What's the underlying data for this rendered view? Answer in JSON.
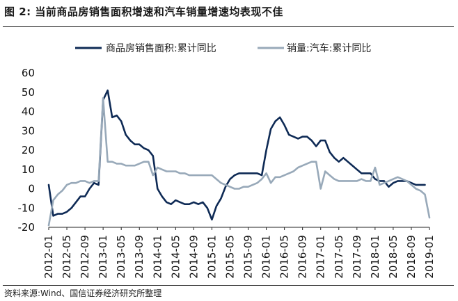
{
  "figure": {
    "title": "图 2:  当前商品房销售面积增速和汽车销量增速均表现不佳",
    "source": "资料来源:Wind、国信证券经济研究所整理"
  },
  "chart_data": {
    "type": "line",
    "title": "",
    "xlabel": "",
    "ylabel": "",
    "ylim": [
      -20,
      60
    ],
    "yticks": [
      -20,
      -10,
      0,
      10,
      20,
      30,
      40,
      50,
      60
    ],
    "xticks": [
      "2012-01",
      "2012-05",
      "2012-09",
      "2013-01",
      "2013-05",
      "2013-09",
      "2014-01",
      "2014-05",
      "2014-09",
      "2015-01",
      "2015-05",
      "2015-09",
      "2016-01",
      "2016-05",
      "2016-09",
      "2017-01",
      "2017-05",
      "2017-09",
      "2018-01",
      "2018-05",
      "2018-09",
      "2019-01"
    ],
    "grid": false,
    "legend_position": "top",
    "series": [
      {
        "name": "商品房销售面积:累计同比",
        "color": "#0e2a55",
        "points": [
          [
            "2012-01",
            2
          ],
          [
            "2012-02",
            -14
          ],
          [
            "2012-03",
            -13
          ],
          [
            "2012-04",
            -13
          ],
          [
            "2012-05",
            -12
          ],
          [
            "2012-06",
            -10
          ],
          [
            "2012-07",
            -7
          ],
          [
            "2012-08",
            -4
          ],
          [
            "2012-09",
            -4
          ],
          [
            "2012-10",
            0
          ],
          [
            "2012-11",
            3
          ],
          [
            "2012-12",
            2
          ],
          [
            "2013-01",
            46
          ],
          [
            "2013-02",
            51
          ],
          [
            "2013-03",
            37
          ],
          [
            "2013-04",
            38
          ],
          [
            "2013-05",
            35
          ],
          [
            "2013-06",
            28
          ],
          [
            "2013-07",
            25
          ],
          [
            "2013-08",
            23
          ],
          [
            "2013-09",
            23
          ],
          [
            "2013-10",
            21
          ],
          [
            "2013-11",
            20
          ],
          [
            "2013-12",
            17
          ],
          [
            "2014-01",
            0
          ],
          [
            "2014-02",
            -4
          ],
          [
            "2014-03",
            -7
          ],
          [
            "2014-04",
            -8
          ],
          [
            "2014-05",
            -6
          ],
          [
            "2014-06",
            -7
          ],
          [
            "2014-07",
            -8
          ],
          [
            "2014-08",
            -8
          ],
          [
            "2014-09",
            -7
          ],
          [
            "2014-10",
            -8
          ],
          [
            "2014-11",
            -7
          ],
          [
            "2014-12",
            -10
          ],
          [
            "2015-01",
            -16
          ],
          [
            "2015-02",
            -9
          ],
          [
            "2015-03",
            -5
          ],
          [
            "2015-04",
            1
          ],
          [
            "2015-05",
            5
          ],
          [
            "2015-06",
            7
          ],
          [
            "2015-07",
            8
          ],
          [
            "2015-08",
            8
          ],
          [
            "2015-09",
            8
          ],
          [
            "2015-10",
            8
          ],
          [
            "2015-11",
            8
          ],
          [
            "2015-12",
            7
          ],
          [
            "2016-01",
            20
          ],
          [
            "2016-02",
            31
          ],
          [
            "2016-03",
            35
          ],
          [
            "2016-04",
            37
          ],
          [
            "2016-05",
            33
          ],
          [
            "2016-06",
            28
          ],
          [
            "2016-07",
            27
          ],
          [
            "2016-08",
            26
          ],
          [
            "2016-09",
            27
          ],
          [
            "2016-10",
            27
          ],
          [
            "2016-11",
            25
          ],
          [
            "2016-12",
            22
          ],
          [
            "2017-01",
            25
          ],
          [
            "2017-02",
            25
          ],
          [
            "2017-03",
            19
          ],
          [
            "2017-04",
            16
          ],
          [
            "2017-05",
            14
          ],
          [
            "2017-06",
            16
          ],
          [
            "2017-07",
            14
          ],
          [
            "2017-08",
            12
          ],
          [
            "2017-09",
            10
          ],
          [
            "2017-10",
            8
          ],
          [
            "2017-11",
            8
          ],
          [
            "2017-12",
            8
          ],
          [
            "2018-01",
            5
          ],
          [
            "2018-02",
            4
          ],
          [
            "2018-03",
            4
          ],
          [
            "2018-04",
            1
          ],
          [
            "2018-05",
            3
          ],
          [
            "2018-06",
            4
          ],
          [
            "2018-07",
            4
          ],
          [
            "2018-08",
            4
          ],
          [
            "2018-09",
            3
          ],
          [
            "2018-10",
            2
          ],
          [
            "2018-11",
            2
          ],
          [
            "2018-12",
            2
          ]
        ]
      },
      {
        "name": "销量:汽车:累计同比",
        "color": "#98a9b9",
        "points": [
          [
            "2012-01",
            -19
          ],
          [
            "2012-02",
            -6
          ],
          [
            "2012-03",
            -3
          ],
          [
            "2012-04",
            -1
          ],
          [
            "2012-05",
            2
          ],
          [
            "2012-06",
            3
          ],
          [
            "2012-07",
            3
          ],
          [
            "2012-08",
            4
          ],
          [
            "2012-09",
            4
          ],
          [
            "2012-10",
            3
          ],
          [
            "2012-11",
            4
          ],
          [
            "2012-12",
            4
          ],
          [
            "2013-01",
            47
          ],
          [
            "2013-02",
            14
          ],
          [
            "2013-03",
            14
          ],
          [
            "2013-04",
            13
          ],
          [
            "2013-05",
            13
          ],
          [
            "2013-06",
            12
          ],
          [
            "2013-07",
            12
          ],
          [
            "2013-08",
            12
          ],
          [
            "2013-09",
            13
          ],
          [
            "2013-10",
            14
          ],
          [
            "2013-11",
            14
          ],
          [
            "2013-12",
            7
          ],
          [
            "2014-01",
            11
          ],
          [
            "2014-02",
            10
          ],
          [
            "2014-03",
            9
          ],
          [
            "2014-04",
            9
          ],
          [
            "2014-05",
            9
          ],
          [
            "2014-06",
            8
          ],
          [
            "2014-07",
            8
          ],
          [
            "2014-08",
            7
          ],
          [
            "2014-09",
            7
          ],
          [
            "2014-10",
            7
          ],
          [
            "2014-11",
            7
          ],
          [
            "2014-12",
            7
          ],
          [
            "2015-01",
            7
          ],
          [
            "2015-02",
            5
          ],
          [
            "2015-03",
            3
          ],
          [
            "2015-04",
            2
          ],
          [
            "2015-05",
            1
          ],
          [
            "2015-06",
            0
          ],
          [
            "2015-07",
            0
          ],
          [
            "2015-08",
            1
          ],
          [
            "2015-09",
            1
          ],
          [
            "2015-10",
            2
          ],
          [
            "2015-11",
            3
          ],
          [
            "2015-12",
            5
          ],
          [
            "2016-01",
            8
          ],
          [
            "2016-02",
            3
          ],
          [
            "2016-03",
            6
          ],
          [
            "2016-04",
            6
          ],
          [
            "2016-05",
            7
          ],
          [
            "2016-06",
            8
          ],
          [
            "2016-07",
            9
          ],
          [
            "2016-08",
            11
          ],
          [
            "2016-09",
            12
          ],
          [
            "2016-10",
            13
          ],
          [
            "2016-11",
            14
          ],
          [
            "2016-12",
            14
          ],
          [
            "2017-01",
            0
          ],
          [
            "2017-02",
            9
          ],
          [
            "2017-03",
            7
          ],
          [
            "2017-04",
            5
          ],
          [
            "2017-05",
            4
          ],
          [
            "2017-06",
            4
          ],
          [
            "2017-07",
            4
          ],
          [
            "2017-08",
            4
          ],
          [
            "2017-09",
            4
          ],
          [
            "2017-10",
            5
          ],
          [
            "2017-11",
            4
          ],
          [
            "2017-12",
            4
          ],
          [
            "2018-01",
            11
          ],
          [
            "2018-02",
            2
          ],
          [
            "2018-03",
            3
          ],
          [
            "2018-04",
            4
          ],
          [
            "2018-05",
            5
          ],
          [
            "2018-06",
            6
          ],
          [
            "2018-07",
            5
          ],
          [
            "2018-08",
            4
          ],
          [
            "2018-09",
            2
          ],
          [
            "2018-10",
            0
          ],
          [
            "2018-11",
            -1
          ],
          [
            "2018-12",
            -3
          ],
          [
            "2019-01",
            -15
          ]
        ]
      }
    ]
  }
}
